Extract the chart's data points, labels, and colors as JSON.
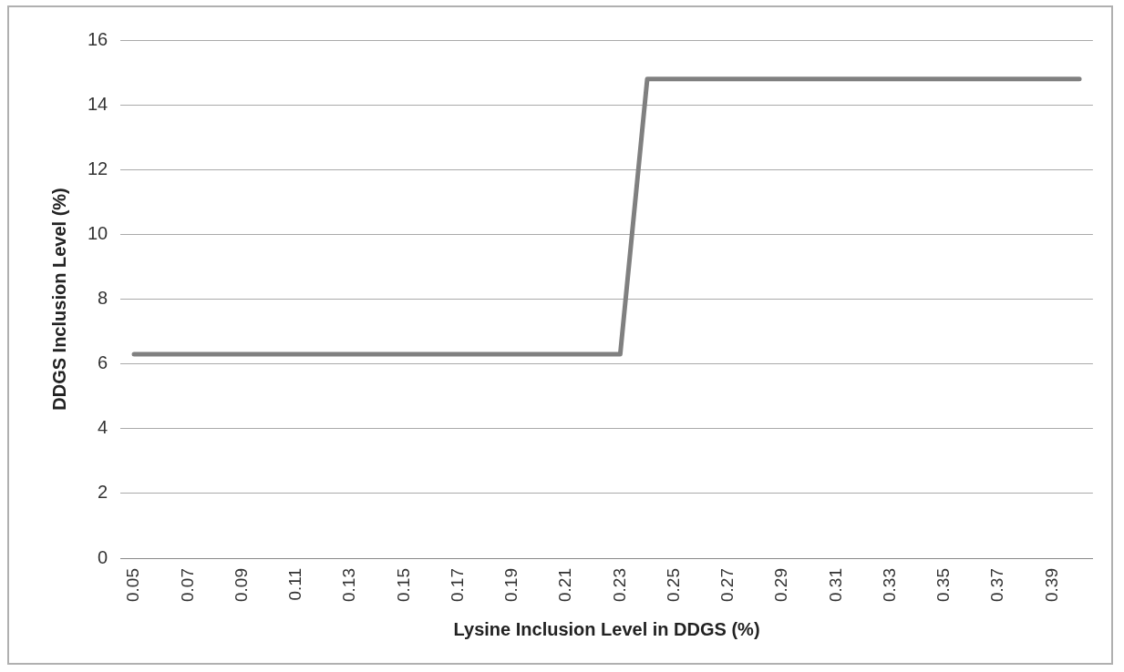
{
  "chart_data": {
    "type": "line",
    "xlabel": "Lysine Inclusion Level in DDGS (%)",
    "ylabel": "DDGS Inclusion Level (%)",
    "categories": [
      "0.05",
      null,
      "0.07",
      null,
      "0.09",
      null,
      "0.11",
      null,
      "0.13",
      null,
      "0.15",
      null,
      "0.17",
      null,
      "0.19",
      null,
      "0.21",
      null,
      "0.23",
      null,
      "0.25",
      null,
      "0.27",
      null,
      "0.29",
      null,
      "0.31",
      null,
      "0.33",
      null,
      "0.35",
      null,
      "0.37",
      null,
      "0.39",
      null
    ],
    "series": [
      {
        "color": "#808080",
        "values": [
          6.3,
          6.3,
          6.3,
          6.3,
          6.3,
          6.3,
          6.3,
          6.3,
          6.3,
          6.3,
          6.3,
          6.3,
          6.3,
          6.3,
          6.3,
          6.3,
          6.3,
          6.3,
          6.3,
          14.8,
          14.8,
          14.8,
          14.8,
          14.8,
          14.8,
          14.8,
          14.8,
          14.8,
          14.8,
          14.8,
          14.8,
          14.8,
          14.8,
          14.8,
          14.8,
          14.8
        ]
      }
    ],
    "ylim": [
      0,
      16
    ],
    "yticks": [
      0,
      2,
      4,
      6,
      8,
      10,
      12,
      14,
      16
    ],
    "grid": "y",
    "legend": false,
    "marker": "none",
    "line_style": "solid"
  }
}
